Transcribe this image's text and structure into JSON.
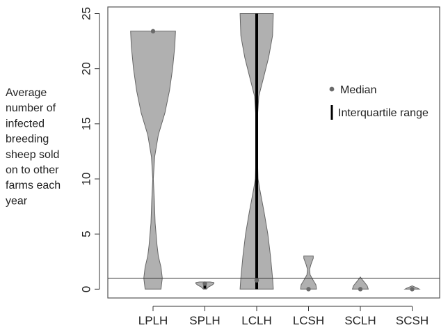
{
  "chart_data": {
    "type": "violin",
    "title": "",
    "xlabel": "",
    "ylabel_lines": [
      "Average",
      "number of",
      "infected",
      "breeding",
      "sheep sold",
      "on to other",
      "farms each",
      "year"
    ],
    "categories": [
      "LPLH",
      "SPLH",
      "LCLH",
      "LCSH",
      "SCLH",
      "SCSH"
    ],
    "ylim": [
      -0.8,
      25.6
    ],
    "yticks": [
      0,
      5,
      10,
      15,
      20,
      25
    ],
    "reference_line": 1,
    "legend": {
      "placement": "right-middle",
      "median_label": "Median",
      "iqr_label": "Interquartile range"
    },
    "series": [
      {
        "category": "LPLH",
        "median": 23.4,
        "iqr": null,
        "profile": [
          [
            0,
            0.3
          ],
          [
            1,
            0.35
          ],
          [
            2,
            0.3
          ],
          [
            3,
            0.2
          ],
          [
            4,
            0.15
          ],
          [
            6,
            0.08
          ],
          [
            8,
            0.05
          ],
          [
            10,
            0.01
          ],
          [
            12,
            0.06
          ],
          [
            14,
            0.2
          ],
          [
            16,
            0.45
          ],
          [
            18,
            0.62
          ],
          [
            20,
            0.74
          ],
          [
            22,
            0.82
          ],
          [
            23.4,
            0.85
          ]
        ]
      },
      {
        "category": "SPLH",
        "median": 0.5,
        "iqr": [
          0.05,
          0.55
        ],
        "profile": [
          [
            0,
            0.06
          ],
          [
            0.2,
            0.14
          ],
          [
            0.35,
            0.26
          ],
          [
            0.5,
            0.34
          ],
          [
            0.6,
            0.34
          ],
          [
            0.65,
            0.2
          ]
        ]
      },
      {
        "category": "LCLH",
        "median": 0.8,
        "iqr": [
          0,
          25
        ],
        "profile": [
          [
            0,
            0.63
          ],
          [
            1,
            0.6
          ],
          [
            3,
            0.52
          ],
          [
            5,
            0.42
          ],
          [
            7,
            0.28
          ],
          [
            9,
            0.12
          ],
          [
            10,
            0.05
          ],
          [
            12,
            0.03
          ],
          [
            14,
            0.03
          ],
          [
            16,
            0.04
          ],
          [
            17.5,
            0.08
          ],
          [
            19,
            0.24
          ],
          [
            21,
            0.45
          ],
          [
            23,
            0.6
          ],
          [
            25,
            0.63
          ]
        ]
      },
      {
        "category": "LCSH",
        "median": 0,
        "iqr": null,
        "profile": [
          [
            0,
            0.3
          ],
          [
            0.4,
            0.28
          ],
          [
            0.8,
            0.18
          ],
          [
            1.3,
            0.06
          ],
          [
            1.8,
            0.04
          ],
          [
            2.3,
            0.1
          ],
          [
            2.8,
            0.18
          ],
          [
            3.0,
            0.18
          ]
        ]
      },
      {
        "category": "SCLH",
        "median": 0,
        "iqr": null,
        "profile": [
          [
            0,
            0.3
          ],
          [
            0.3,
            0.26
          ],
          [
            0.6,
            0.16
          ],
          [
            0.9,
            0.06
          ],
          [
            1.1,
            0.0
          ]
        ]
      },
      {
        "category": "SCSH",
        "median": 0,
        "iqr": null,
        "profile": [
          [
            0,
            0.27
          ],
          [
            0.1,
            0.2
          ],
          [
            0.2,
            0.1
          ],
          [
            0.3,
            0.0
          ]
        ]
      }
    ],
    "colors": {
      "violin_fill": "#b0b0b0",
      "violin_stroke": "#666666",
      "median": "#6a6a6a",
      "iqr": "#000000",
      "axis": "#333333",
      "frame": "#555555",
      "reference": "#333333"
    }
  }
}
